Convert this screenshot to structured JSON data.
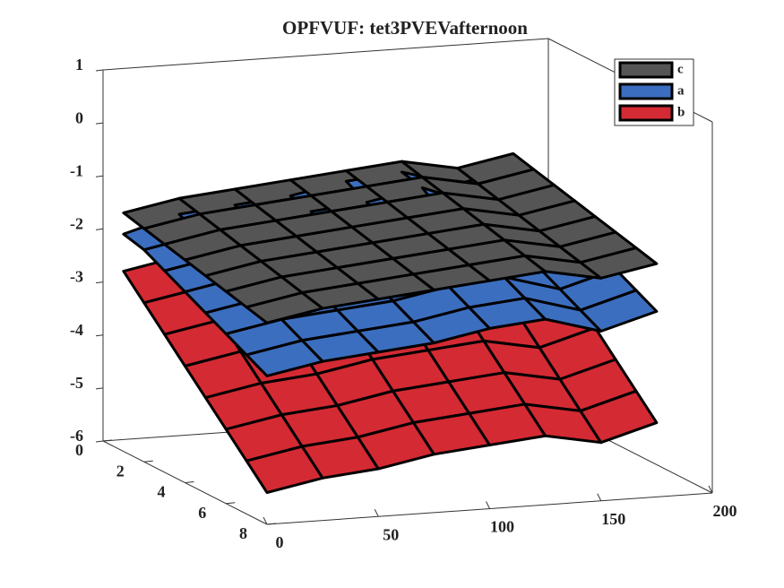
{
  "chart_data": {
    "type": "surface3d",
    "title": "OPFVUF: tet3PVEVafternoon",
    "x": [
      0,
      25,
      50,
      75,
      100,
      125,
      150,
      175
    ],
    "y": [
      1,
      2,
      3,
      4,
      5,
      6,
      7,
      8
    ],
    "xlim": [
      0,
      200
    ],
    "xticks": [
      0,
      50,
      100,
      150,
      200
    ],
    "ylim": [
      0,
      8
    ],
    "yticks": [
      0,
      2,
      4,
      6,
      8
    ],
    "zlim": [
      -6,
      1
    ],
    "zticks": [
      1,
      0,
      -1,
      -2,
      -3,
      -4,
      -5,
      -6
    ],
    "legend": "upper right",
    "series": [
      {
        "name": "b",
        "color": "#d42a33",
        "values": [
          [
            -2.6,
            -2.4,
            -2.3,
            -2.1,
            -2.0,
            -1.9,
            -2.1,
            -1.9
          ],
          [
            -3.0,
            -2.8,
            -2.7,
            -2.5,
            -2.4,
            -2.3,
            -2.5,
            -2.2
          ],
          [
            -3.4,
            -3.2,
            -3.1,
            -2.9,
            -2.8,
            -2.7,
            -2.9,
            -2.6
          ],
          [
            -3.8,
            -3.6,
            -3.5,
            -3.3,
            -3.2,
            -3.1,
            -3.3,
            -3.0
          ],
          [
            -4.2,
            -4.0,
            -3.9,
            -3.7,
            -3.6,
            -3.5,
            -3.7,
            -3.4
          ],
          [
            -4.6,
            -4.4,
            -4.3,
            -4.1,
            -4.0,
            -3.9,
            -4.1,
            -3.8
          ],
          [
            -5.0,
            -4.8,
            -4.7,
            -4.5,
            -4.4,
            -4.3,
            -4.5,
            -4.2
          ],
          [
            -5.4,
            -5.2,
            -5.1,
            -4.9,
            -4.8,
            -4.7,
            -4.9,
            -4.6
          ]
        ]
      },
      {
        "name": "a",
        "color": "#3c6ebf",
        "values": [
          [
            -1.9,
            -1.6,
            -1.5,
            -1.4,
            -1.2,
            -1.1,
            -1.4,
            -1.2
          ],
          [
            -2.0,
            -1.8,
            -1.7,
            -1.5,
            -1.4,
            -1.2,
            -1.6,
            -1.3
          ],
          [
            -2.2,
            -2.0,
            -1.9,
            -1.8,
            -1.6,
            -1.5,
            -1.8,
            -1.5
          ],
          [
            -2.4,
            -2.2,
            -2.1,
            -2.0,
            -1.8,
            -1.7,
            -2.0,
            -1.7
          ],
          [
            -2.6,
            -2.4,
            -2.3,
            -2.2,
            -2.0,
            -1.9,
            -2.2,
            -1.9
          ],
          [
            -2.8,
            -2.6,
            -2.5,
            -2.4,
            -2.2,
            -2.1,
            -2.4,
            -2.1
          ],
          [
            -3.0,
            -2.8,
            -2.7,
            -2.6,
            -2.4,
            -2.3,
            -2.6,
            -2.3
          ],
          [
            -3.2,
            -3.0,
            -2.9,
            -2.8,
            -2.6,
            -2.5,
            -2.8,
            -2.5
          ]
        ]
      },
      {
        "name": "c",
        "color": "#555555",
        "values": [
          [
            -1.5,
            -1.3,
            -1.2,
            -1.1,
            -1.0,
            -0.9,
            -1.1,
            -0.9
          ],
          [
            -1.6,
            -1.4,
            -1.3,
            -1.2,
            -1.1,
            -1.0,
            -1.2,
            -1.0
          ],
          [
            -1.7,
            -1.5,
            -1.4,
            -1.3,
            -1.2,
            -1.1,
            -1.3,
            -1.1
          ],
          [
            -1.8,
            -1.6,
            -1.5,
            -1.4,
            -1.3,
            -1.2,
            -1.4,
            -1.2
          ],
          [
            -1.9,
            -1.7,
            -1.6,
            -1.5,
            -1.4,
            -1.3,
            -1.5,
            -1.3
          ],
          [
            -2.0,
            -1.8,
            -1.7,
            -1.6,
            -1.5,
            -1.4,
            -1.6,
            -1.4
          ],
          [
            -2.1,
            -1.9,
            -1.8,
            -1.7,
            -1.6,
            -1.5,
            -1.7,
            -1.5
          ],
          [
            -2.2,
            -2.0,
            -1.9,
            -1.8,
            -1.7,
            -1.6,
            -1.8,
            -1.6
          ]
        ]
      }
    ]
  }
}
